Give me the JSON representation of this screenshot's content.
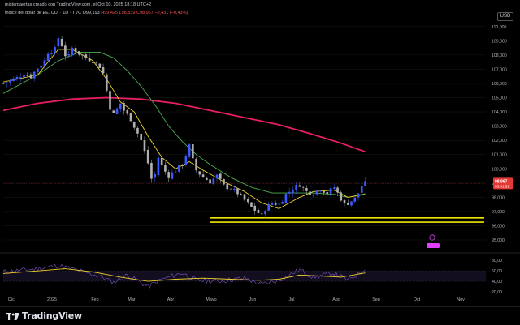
{
  "header": {
    "line1": "misterpaertas creado con TradingView.com, el Oct 10, 2025 18:18 UTC+2",
    "title": "Índice del dólar de EE. UU. · 1D · TVC",
    "ohlc_o": "O99,193",
    "ohlc_h": "H99,425",
    "ohlc_l": "L98,839",
    "ohlc_c": "C98,967",
    "change": "−0,431 (−0,43%)"
  },
  "currency": "USD",
  "price_badge": {
    "price": "98,967",
    "timer": "06:41:59"
  },
  "footer": {
    "brand": "TradingView"
  },
  "chart_data": {
    "type": "candlestick",
    "x_ticks": [
      "Dic",
      "2025",
      "Feb",
      "Mar",
      "Abr",
      "Mayo",
      "Jun",
      "Jul",
      "Ago",
      "Sep",
      "Oct",
      "Nov"
    ],
    "y_ticks": [
      "110,000",
      "109,000",
      "108,000",
      "107,000",
      "106,000",
      "105,000",
      "104,000",
      "103,000",
      "102,000",
      "101,000",
      "100,000",
      "99,000",
      "98,000",
      "97,000",
      "96,000",
      "95,000"
    ],
    "ylim": [
      95,
      110.5
    ],
    "close_path": [
      [
        0,
        106.0
      ],
      [
        2,
        106.2
      ],
      [
        4,
        106.4
      ],
      [
        6,
        106.7
      ],
      [
        8,
        106.5
      ],
      [
        10,
        107.1
      ],
      [
        12,
        107.6
      ],
      [
        13,
        108.2
      ],
      [
        15,
        108.4
      ],
      [
        16,
        109.2
      ],
      [
        17,
        108.7
      ],
      [
        18,
        108.0
      ],
      [
        19,
        107.9
      ],
      [
        20,
        108.5
      ],
      [
        22,
        108.1
      ],
      [
        24,
        107.8
      ],
      [
        26,
        107.6
      ],
      [
        28,
        107.2
      ],
      [
        29,
        106.7
      ],
      [
        30,
        105.5
      ],
      [
        31,
        104.3
      ],
      [
        32,
        103.8
      ],
      [
        33,
        104.2
      ],
      [
        34,
        104.6
      ],
      [
        35,
        104.1
      ],
      [
        36,
        103.8
      ],
      [
        37,
        103.5
      ],
      [
        38,
        103.0
      ],
      [
        39,
        102.5
      ],
      [
        40,
        102.0
      ],
      [
        41,
        101.2
      ],
      [
        42,
        100.4
      ],
      [
        43,
        99.3
      ],
      [
        44,
        99.6
      ],
      [
        45,
        100.8
      ],
      [
        46,
        100.2
      ],
      [
        47,
        99.8
      ],
      [
        48,
        99.5
      ],
      [
        50,
        99.9
      ],
      [
        52,
        100.3
      ],
      [
        54,
        101.6
      ],
      [
        55,
        100.6
      ],
      [
        56,
        99.9
      ],
      [
        58,
        99.4
      ],
      [
        60,
        99.1
      ],
      [
        62,
        99.5
      ],
      [
        64,
        98.8
      ],
      [
        66,
        98.6
      ],
      [
        68,
        98.3
      ],
      [
        70,
        97.8
      ],
      [
        72,
        97.3
      ],
      [
        74,
        96.9
      ],
      [
        75,
        96.7
      ],
      [
        76,
        97.2
      ],
      [
        78,
        97.6
      ],
      [
        80,
        97.5
      ],
      [
        82,
        98.2
      ],
      [
        84,
        98.6
      ],
      [
        86,
        98.9
      ],
      [
        88,
        98.4
      ],
      [
        90,
        98.3
      ],
      [
        92,
        98.6
      ],
      [
        94,
        98.3
      ],
      [
        96,
        98.7
      ],
      [
        98,
        97.9
      ],
      [
        99,
        97.5
      ],
      [
        100,
        97.6
      ],
      [
        102,
        97.9
      ],
      [
        103,
        98.3
      ],
      [
        104,
        98.8
      ],
      [
        105,
        98.97
      ]
    ],
    "ma_short_path": [
      [
        0,
        106.1
      ],
      [
        10,
        106.6
      ],
      [
        16,
        108.4
      ],
      [
        20,
        108.4
      ],
      [
        26,
        107.6
      ],
      [
        30,
        106.3
      ],
      [
        34,
        104.7
      ],
      [
        38,
        104.0
      ],
      [
        42,
        102.3
      ],
      [
        46,
        100.8
      ],
      [
        50,
        100.0
      ],
      [
        54,
        100.5
      ],
      [
        58,
        99.9
      ],
      [
        64,
        99.1
      ],
      [
        70,
        98.4
      ],
      [
        75,
        97.6
      ],
      [
        80,
        97.2
      ],
      [
        86,
        98.0
      ],
      [
        90,
        98.4
      ],
      [
        96,
        98.5
      ],
      [
        100,
        98.0
      ],
      [
        105,
        98.2
      ]
    ],
    "ma_long_path": [
      [
        0,
        105.3
      ],
      [
        10,
        106.6
      ],
      [
        16,
        107.6
      ],
      [
        22,
        108.2
      ],
      [
        28,
        108.2
      ],
      [
        32,
        107.8
      ],
      [
        36,
        106.9
      ],
      [
        40,
        105.8
      ],
      [
        44,
        104.5
      ],
      [
        48,
        103.0
      ],
      [
        52,
        101.9
      ],
      [
        56,
        101.0
      ],
      [
        60,
        100.3
      ],
      [
        66,
        99.4
      ],
      [
        72,
        98.7
      ],
      [
        78,
        98.3
      ],
      [
        84,
        98.3
      ],
      [
        90,
        98.3
      ],
      [
        96,
        98.2
      ],
      [
        100,
        98.0
      ],
      [
        105,
        98.25
      ]
    ],
    "ma_200_path": [
      [
        0,
        104.1
      ],
      [
        10,
        104.6
      ],
      [
        20,
        104.9
      ],
      [
        30,
        105.0
      ],
      [
        40,
        104.9
      ],
      [
        50,
        104.6
      ],
      [
        60,
        104.1
      ],
      [
        70,
        103.6
      ],
      [
        80,
        103.1
      ],
      [
        90,
        102.4
      ],
      [
        98,
        101.8
      ],
      [
        105,
        101.2
      ]
    ],
    "support_levels": [
      96.55,
      96.25
    ],
    "rsi": {
      "ticks": [
        "80,00",
        "60,00",
        "40,00",
        "20,00"
      ],
      "ylim": [
        20,
        85
      ],
      "rsi_path": [
        [
          0,
          58
        ],
        [
          10,
          64
        ],
        [
          16,
          70
        ],
        [
          22,
          60
        ],
        [
          28,
          50
        ],
        [
          32,
          38
        ],
        [
          36,
          52
        ],
        [
          42,
          30
        ],
        [
          46,
          44
        ],
        [
          52,
          56
        ],
        [
          56,
          42
        ],
        [
          62,
          40
        ],
        [
          70,
          46
        ],
        [
          75,
          34
        ],
        [
          80,
          42
        ],
        [
          86,
          62
        ],
        [
          90,
          48
        ],
        [
          96,
          56
        ],
        [
          100,
          42
        ],
        [
          103,
          54
        ],
        [
          105,
          66
        ]
      ],
      "signal_path": [
        [
          0,
          55
        ],
        [
          10,
          60
        ],
        [
          18,
          64
        ],
        [
          26,
          58
        ],
        [
          34,
          48
        ],
        [
          42,
          40
        ],
        [
          50,
          44
        ],
        [
          58,
          46
        ],
        [
          66,
          44
        ],
        [
          74,
          42
        ],
        [
          80,
          44
        ],
        [
          86,
          52
        ],
        [
          92,
          50
        ],
        [
          98,
          48
        ],
        [
          105,
          56
        ]
      ]
    }
  },
  "colors": {
    "up": "#3d5afe",
    "down": "#b0b0b0",
    "ma_short": "#f2d22e",
    "ma_long": "#4caf50",
    "ma_200": "#e91e63",
    "support": "#f2e600",
    "rsi": "#7e57c2",
    "rsi_signal": "#f2d22e",
    "badge": "#e53935"
  }
}
